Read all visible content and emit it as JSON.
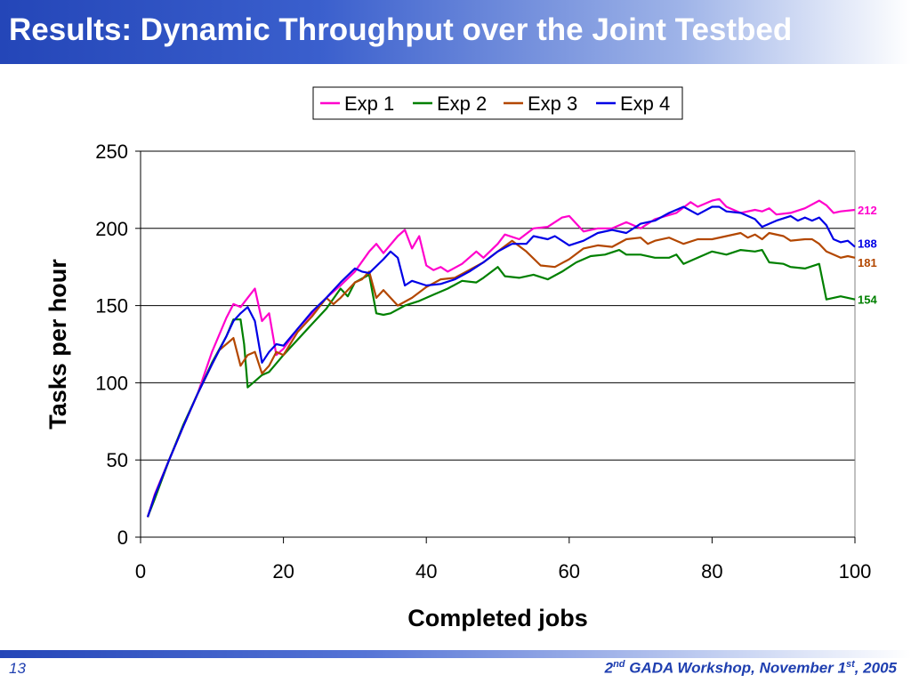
{
  "slide": {
    "title": "Results: Dynamic Throughput over the Joint Testbed",
    "page_number": "13",
    "footer": {
      "prefix": "2",
      "prefix_sup": "nd",
      "middle": " GADA Workshop, November 1",
      "middle_sup": "st",
      "suffix": ", 2005"
    },
    "colors": {
      "title_bar": "#2446b8",
      "title_text": "#ffffff",
      "footer_text": "#1f3fb0"
    }
  },
  "chart_data": {
    "type": "line",
    "xlabel": "Completed jobs",
    "ylabel": "Tasks per hour",
    "xlim": [
      0,
      100
    ],
    "ylim": [
      0,
      250
    ],
    "x_ticks": [
      "0",
      "20",
      "40",
      "60",
      "80",
      "100"
    ],
    "y_ticks": [
      "0",
      "50",
      "100",
      "150",
      "200",
      "250"
    ],
    "grid": "horizontal",
    "legend": "top-center",
    "series": [
      {
        "name": "Exp 1",
        "color": "#ff00cc",
        "end_label": "212",
        "points": [
          [
            1,
            13
          ],
          [
            2,
            28
          ],
          [
            4,
            50
          ],
          [
            6,
            72
          ],
          [
            8,
            93
          ],
          [
            10,
            120
          ],
          [
            12,
            142
          ],
          [
            13,
            151
          ],
          [
            14,
            149
          ],
          [
            15,
            155
          ],
          [
            16,
            161
          ],
          [
            17,
            140
          ],
          [
            18,
            145
          ],
          [
            19,
            118
          ],
          [
            20,
            122
          ],
          [
            22,
            135
          ],
          [
            24,
            145
          ],
          [
            26,
            155
          ],
          [
            28,
            163
          ],
          [
            30,
            172
          ],
          [
            32,
            185
          ],
          [
            33,
            190
          ],
          [
            34,
            184
          ],
          [
            36,
            195
          ],
          [
            37,
            199
          ],
          [
            38,
            187
          ],
          [
            39,
            195
          ],
          [
            40,
            176
          ],
          [
            41,
            173
          ],
          [
            42,
            175
          ],
          [
            43,
            172
          ],
          [
            45,
            177
          ],
          [
            47,
            185
          ],
          [
            48,
            181
          ],
          [
            50,
            190
          ],
          [
            51,
            196
          ],
          [
            53,
            193
          ],
          [
            55,
            200
          ],
          [
            57,
            201
          ],
          [
            59,
            207
          ],
          [
            60,
            208
          ],
          [
            62,
            198
          ],
          [
            64,
            200
          ],
          [
            66,
            200
          ],
          [
            68,
            204
          ],
          [
            70,
            200
          ],
          [
            72,
            206
          ],
          [
            75,
            210
          ],
          [
            77,
            217
          ],
          [
            78,
            214
          ],
          [
            80,
            218
          ],
          [
            81,
            219
          ],
          [
            82,
            214
          ],
          [
            84,
            210
          ],
          [
            86,
            212
          ],
          [
            87,
            211
          ],
          [
            88,
            213
          ],
          [
            89,
            209
          ],
          [
            91,
            210
          ],
          [
            93,
            213
          ],
          [
            95,
            218
          ],
          [
            96,
            215
          ],
          [
            97,
            210
          ],
          [
            98,
            211
          ],
          [
            100,
            212
          ]
        ]
      },
      {
        "name": "Exp 2",
        "color": "#008000",
        "end_label": "154",
        "points": [
          [
            1,
            13
          ],
          [
            2,
            25
          ],
          [
            4,
            50
          ],
          [
            6,
            73
          ],
          [
            8,
            93
          ],
          [
            10,
            113
          ],
          [
            12,
            130
          ],
          [
            13,
            141
          ],
          [
            14,
            141
          ],
          [
            14.5,
            125
          ],
          [
            15,
            97
          ],
          [
            16,
            101
          ],
          [
            17,
            105
          ],
          [
            18,
            107
          ],
          [
            20,
            118
          ],
          [
            22,
            128
          ],
          [
            24,
            138
          ],
          [
            26,
            148
          ],
          [
            28,
            161
          ],
          [
            29,
            156
          ],
          [
            30,
            165
          ],
          [
            32,
            170
          ],
          [
            33,
            145
          ],
          [
            34,
            144
          ],
          [
            35,
            145
          ],
          [
            37,
            150
          ],
          [
            39,
            153
          ],
          [
            41,
            157
          ],
          [
            43,
            161
          ],
          [
            45,
            166
          ],
          [
            47,
            165
          ],
          [
            48,
            168
          ],
          [
            50,
            175
          ],
          [
            51,
            169
          ],
          [
            53,
            168
          ],
          [
            55,
            170
          ],
          [
            57,
            167
          ],
          [
            59,
            172
          ],
          [
            61,
            178
          ],
          [
            63,
            182
          ],
          [
            65,
            183
          ],
          [
            67,
            186
          ],
          [
            68,
            183
          ],
          [
            70,
            183
          ],
          [
            72,
            181
          ],
          [
            74,
            181
          ],
          [
            75,
            183
          ],
          [
            76,
            177
          ],
          [
            78,
            181
          ],
          [
            80,
            185
          ],
          [
            82,
            183
          ],
          [
            84,
            186
          ],
          [
            86,
            185
          ],
          [
            87,
            186
          ],
          [
            88,
            178
          ],
          [
            90,
            177
          ],
          [
            91,
            175
          ],
          [
            93,
            174
          ],
          [
            95,
            177
          ],
          [
            96,
            154
          ],
          [
            97,
            155
          ],
          [
            98,
            156
          ],
          [
            99,
            155
          ],
          [
            100,
            154
          ]
        ]
      },
      {
        "name": "Exp 3",
        "color": "#b34700",
        "end_label": "181",
        "points": [
          [
            1,
            13
          ],
          [
            2,
            27
          ],
          [
            4,
            50
          ],
          [
            6,
            72
          ],
          [
            8,
            93
          ],
          [
            10,
            112
          ],
          [
            11,
            121
          ],
          [
            12,
            125
          ],
          [
            13,
            129
          ],
          [
            14,
            111
          ],
          [
            15,
            118
          ],
          [
            16,
            120
          ],
          [
            17,
            106
          ],
          [
            18,
            111
          ],
          [
            19,
            120
          ],
          [
            20,
            118
          ],
          [
            22,
            133
          ],
          [
            24,
            143
          ],
          [
            26,
            155
          ],
          [
            27,
            151
          ],
          [
            28,
            155
          ],
          [
            30,
            165
          ],
          [
            31,
            167
          ],
          [
            32,
            172
          ],
          [
            33,
            155
          ],
          [
            34,
            160
          ],
          [
            35,
            155
          ],
          [
            36,
            150
          ],
          [
            38,
            155
          ],
          [
            40,
            162
          ],
          [
            42,
            167
          ],
          [
            44,
            168
          ],
          [
            46,
            173
          ],
          [
            48,
            178
          ],
          [
            50,
            185
          ],
          [
            52,
            192
          ],
          [
            54,
            185
          ],
          [
            56,
            176
          ],
          [
            58,
            175
          ],
          [
            60,
            180
          ],
          [
            62,
            187
          ],
          [
            64,
            189
          ],
          [
            66,
            188
          ],
          [
            68,
            193
          ],
          [
            70,
            194
          ],
          [
            71,
            190
          ],
          [
            72,
            192
          ],
          [
            74,
            194
          ],
          [
            76,
            190
          ],
          [
            78,
            193
          ],
          [
            80,
            193
          ],
          [
            82,
            195
          ],
          [
            84,
            197
          ],
          [
            85,
            194
          ],
          [
            86,
            196
          ],
          [
            87,
            193
          ],
          [
            88,
            197
          ],
          [
            90,
            195
          ],
          [
            91,
            192
          ],
          [
            93,
            193
          ],
          [
            94,
            193
          ],
          [
            95,
            190
          ],
          [
            96,
            185
          ],
          [
            98,
            181
          ],
          [
            99,
            182
          ],
          [
            100,
            181
          ]
        ]
      },
      {
        "name": "Exp 4",
        "color": "#0000e6",
        "end_label": "188",
        "points": [
          [
            1,
            13
          ],
          [
            2,
            27
          ],
          [
            4,
            50
          ],
          [
            6,
            72
          ],
          [
            8,
            93
          ],
          [
            10,
            112
          ],
          [
            12,
            130
          ],
          [
            13,
            140
          ],
          [
            14,
            145
          ],
          [
            15,
            149
          ],
          [
            16,
            140
          ],
          [
            17,
            113
          ],
          [
            18,
            120
          ],
          [
            19,
            125
          ],
          [
            20,
            124
          ],
          [
            22,
            135
          ],
          [
            24,
            146
          ],
          [
            26,
            155
          ],
          [
            28,
            165
          ],
          [
            30,
            174
          ],
          [
            31,
            172
          ],
          [
            32,
            171
          ],
          [
            34,
            180
          ],
          [
            35,
            185
          ],
          [
            36,
            181
          ],
          [
            37,
            163
          ],
          [
            38,
            166
          ],
          [
            40,
            163
          ],
          [
            42,
            164
          ],
          [
            44,
            167
          ],
          [
            46,
            172
          ],
          [
            48,
            178
          ],
          [
            50,
            185
          ],
          [
            52,
            190
          ],
          [
            54,
            190
          ],
          [
            55,
            195
          ],
          [
            57,
            193
          ],
          [
            58,
            195
          ],
          [
            60,
            189
          ],
          [
            62,
            192
          ],
          [
            64,
            197
          ],
          [
            66,
            199
          ],
          [
            68,
            197
          ],
          [
            70,
            203
          ],
          [
            72,
            205
          ],
          [
            74,
            210
          ],
          [
            76,
            214
          ],
          [
            78,
            209
          ],
          [
            80,
            214
          ],
          [
            81,
            214
          ],
          [
            82,
            211
          ],
          [
            84,
            210
          ],
          [
            86,
            206
          ],
          [
            87,
            201
          ],
          [
            89,
            205
          ],
          [
            91,
            208
          ],
          [
            92,
            205
          ],
          [
            93,
            207
          ],
          [
            94,
            205
          ],
          [
            95,
            207
          ],
          [
            96,
            202
          ],
          [
            97,
            193
          ],
          [
            98,
            191
          ],
          [
            99,
            192
          ],
          [
            100,
            188
          ]
        ]
      }
    ]
  }
}
